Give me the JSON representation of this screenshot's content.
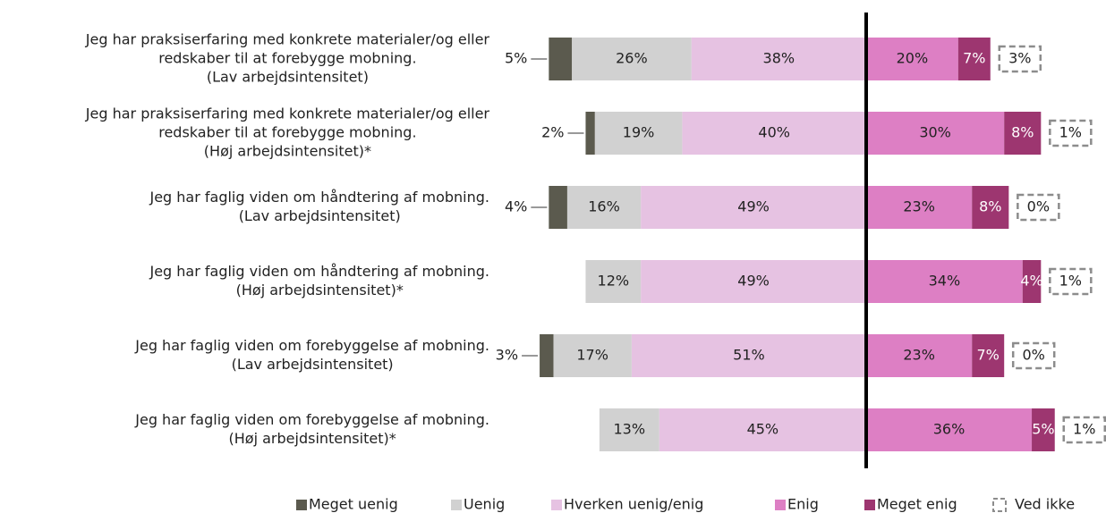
{
  "chart_data": {
    "type": "diverging-stacked-bar",
    "categories": [
      [
        "Jeg har praksiserfaring med konkrete materialer/og eller",
        "redskaber til at forebygge mobning.",
        "(Lav arbejdsintensitet)"
      ],
      [
        "Jeg har praksiserfaring med konkrete materialer/og eller",
        "redskaber til at forebygge mobning.",
        "(Høj arbejdsintensitet)*"
      ],
      [
        "Jeg har faglig viden om håndtering af mobning.",
        "(Lav arbejdsintensitet)"
      ],
      [
        "Jeg har faglig viden om håndtering af mobning.",
        "(Høj arbejdsintensitet)*"
      ],
      [
        "Jeg har faglig viden om forebyggelse af mobning.",
        "(Lav arbejdsintensitet)"
      ],
      [
        "Jeg har faglig viden om forebyggelse af mobning.",
        "(Høj arbejdsintensitet)*"
      ]
    ],
    "series": [
      {
        "name": "Meget uenig",
        "color": "#5b5a4e",
        "side": "left",
        "values": [
          5,
          2,
          4,
          null,
          3,
          null
        ],
        "value_labels": [
          "5%",
          "2%",
          "4%",
          null,
          "3%",
          null
        ]
      },
      {
        "name": "Uenig",
        "color": "#d1d1d1",
        "side": "left",
        "values": [
          26,
          19,
          16,
          12,
          17,
          13
        ],
        "value_labels": [
          "26%",
          "19%",
          "16%",
          "12%",
          "17%",
          "13%"
        ]
      },
      {
        "name": "Hverken uenig/enig",
        "color": "#e6c2e2",
        "side": "left",
        "values": [
          38,
          40,
          49,
          49,
          51,
          45
        ],
        "value_labels": [
          "38%",
          "40%",
          "49%",
          "49%",
          "51%",
          "45%"
        ]
      },
      {
        "name": "Enig",
        "color": "#dd7fc4",
        "side": "right",
        "values": [
          20,
          30,
          23,
          34,
          23,
          36
        ],
        "value_labels": [
          "20%",
          "30%",
          "23%",
          "34%",
          "23%",
          "36%"
        ]
      },
      {
        "name": "Meget enig",
        "color": "#9d3670",
        "side": "right",
        "values": [
          7,
          8,
          8,
          4,
          7,
          5
        ],
        "value_labels": [
          "7%",
          "8%",
          "8%",
          "4%",
          "7%",
          "5%"
        ]
      },
      {
        "name": "Ved ikke",
        "color": "#8c8c8c",
        "side": "box",
        "values": [
          3,
          1,
          0,
          1,
          0,
          1
        ],
        "value_labels": [
          "3%",
          "1%",
          "0%",
          "1%",
          "0%",
          "1%"
        ]
      }
    ]
  }
}
